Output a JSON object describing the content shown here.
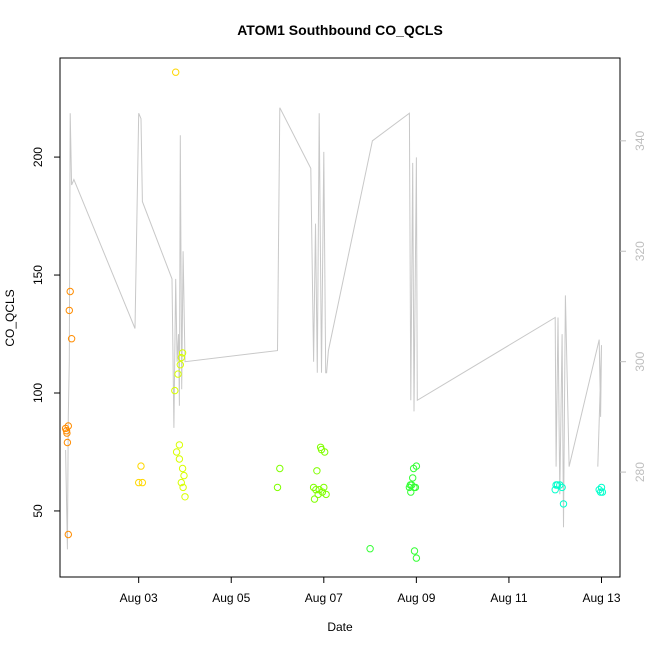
{
  "chart_data": {
    "type": "scatter",
    "title": "ATOM1 Southbound CO_QCLS",
    "xlabel": "Date",
    "ylabel": "CO_QCLS",
    "xlim": [
      1.3,
      13.4
    ],
    "ylim": [
      22,
      242
    ],
    "y2lim": [
      261,
      355
    ],
    "x_ticks": [
      {
        "value": 3,
        "label": "Aug 03"
      },
      {
        "value": 5,
        "label": "Aug 05"
      },
      {
        "value": 7,
        "label": "Aug 07"
      },
      {
        "value": 9,
        "label": "Aug 09"
      },
      {
        "value": 11,
        "label": "Aug 11"
      },
      {
        "value": 13,
        "label": "Aug 13"
      }
    ],
    "y_ticks": [
      50,
      100,
      150,
      200
    ],
    "y2_ticks": [
      280,
      300,
      320,
      340
    ],
    "colors": {
      "line": "#c8c8c8",
      "right_axis": "#bebebe",
      "series": [
        "#ff8c00",
        "#ffd700",
        "#d8ff00",
        "#80ff00",
        "#33ff33",
        "#00ffcc"
      ]
    },
    "series": [
      {
        "color_index": 0,
        "points": [
          [
            1.42,
            85
          ],
          [
            1.44,
            84
          ],
          [
            1.45,
            83
          ],
          [
            1.46,
            79
          ],
          [
            1.48,
            86
          ],
          [
            1.5,
            135
          ],
          [
            1.52,
            143
          ],
          [
            1.55,
            123
          ],
          [
            1.48,
            40
          ]
        ]
      },
      {
        "color_index": 1,
        "points": [
          [
            3.0,
            62
          ],
          [
            3.05,
            69
          ],
          [
            3.08,
            62
          ],
          [
            3.8,
            236
          ]
        ]
      },
      {
        "color_index": 2,
        "points": [
          [
            3.78,
            101
          ],
          [
            3.82,
            75
          ],
          [
            3.85,
            108
          ],
          [
            3.88,
            78
          ],
          [
            3.9,
            112
          ],
          [
            3.92,
            115
          ],
          [
            3.95,
            117
          ],
          [
            3.88,
            72
          ],
          [
            3.92,
            62
          ],
          [
            3.95,
            68
          ],
          [
            3.98,
            65
          ],
          [
            3.96,
            60
          ],
          [
            4.0,
            56
          ]
        ]
      },
      {
        "color_index": 3,
        "points": [
          [
            6.0,
            60
          ],
          [
            6.05,
            68
          ],
          [
            6.78,
            60
          ],
          [
            6.8,
            55
          ],
          [
            6.83,
            59
          ],
          [
            6.85,
            67
          ],
          [
            6.88,
            57
          ],
          [
            6.9,
            59
          ],
          [
            6.93,
            77
          ],
          [
            6.95,
            76
          ],
          [
            6.97,
            58
          ],
          [
            7.0,
            60
          ],
          [
            7.02,
            75
          ],
          [
            7.05,
            57
          ]
        ]
      },
      {
        "color_index": 4,
        "points": [
          [
            8.0,
            34
          ],
          [
            8.85,
            60
          ],
          [
            8.87,
            61
          ],
          [
            8.88,
            58
          ],
          [
            8.9,
            61
          ],
          [
            8.92,
            64
          ],
          [
            8.94,
            68
          ],
          [
            8.95,
            60
          ],
          [
            8.96,
            33
          ],
          [
            8.98,
            60
          ],
          [
            9.0,
            69
          ],
          [
            9.0,
            30
          ]
        ]
      },
      {
        "color_index": 5,
        "points": [
          [
            12.0,
            59
          ],
          [
            12.02,
            61
          ],
          [
            12.05,
            61
          ],
          [
            12.1,
            61
          ],
          [
            12.15,
            60
          ],
          [
            12.18,
            53
          ],
          [
            12.95,
            59
          ],
          [
            12.98,
            58
          ],
          [
            13.0,
            60
          ],
          [
            13.02,
            58
          ]
        ]
      }
    ],
    "line_y2": [
      [
        1.42,
        284
      ],
      [
        1.44,
        275
      ],
      [
        1.46,
        266
      ],
      [
        1.48,
        290
      ],
      [
        1.5,
        300
      ],
      [
        1.52,
        345
      ],
      [
        1.55,
        332
      ],
      [
        1.6,
        333
      ],
      [
        2.92,
        306
      ],
      [
        3.0,
        345
      ],
      [
        3.05,
        344
      ],
      [
        3.08,
        329
      ],
      [
        3.72,
        315
      ],
      [
        3.76,
        288
      ],
      [
        3.8,
        315
      ],
      [
        3.83,
        300
      ],
      [
        3.86,
        305
      ],
      [
        3.88,
        292
      ],
      [
        3.9,
        341
      ],
      [
        3.93,
        295
      ],
      [
        3.96,
        320
      ],
      [
        4.0,
        300
      ],
      [
        6.0,
        302
      ],
      [
        6.05,
        346
      ],
      [
        6.72,
        335
      ],
      [
        6.78,
        300
      ],
      [
        6.82,
        325
      ],
      [
        6.86,
        298
      ],
      [
        6.9,
        345
      ],
      [
        6.95,
        298
      ],
      [
        7.0,
        338
      ],
      [
        7.04,
        298
      ],
      [
        7.06,
        298
      ],
      [
        7.1,
        302
      ],
      [
        8.05,
        340
      ],
      [
        8.85,
        345
      ],
      [
        8.88,
        293
      ],
      [
        8.92,
        336
      ],
      [
        8.95,
        291
      ],
      [
        9.0,
        337
      ],
      [
        9.02,
        293
      ],
      [
        12.0,
        308
      ],
      [
        12.02,
        281
      ],
      [
        12.06,
        308
      ],
      [
        12.1,
        276
      ],
      [
        12.15,
        305
      ],
      [
        12.18,
        270
      ],
      [
        12.22,
        312
      ],
      [
        12.3,
        281
      ],
      [
        12.95,
        304
      ],
      [
        12.98,
        290
      ],
      [
        13.0,
        303
      ],
      [
        12.92,
        281
      ]
    ]
  }
}
